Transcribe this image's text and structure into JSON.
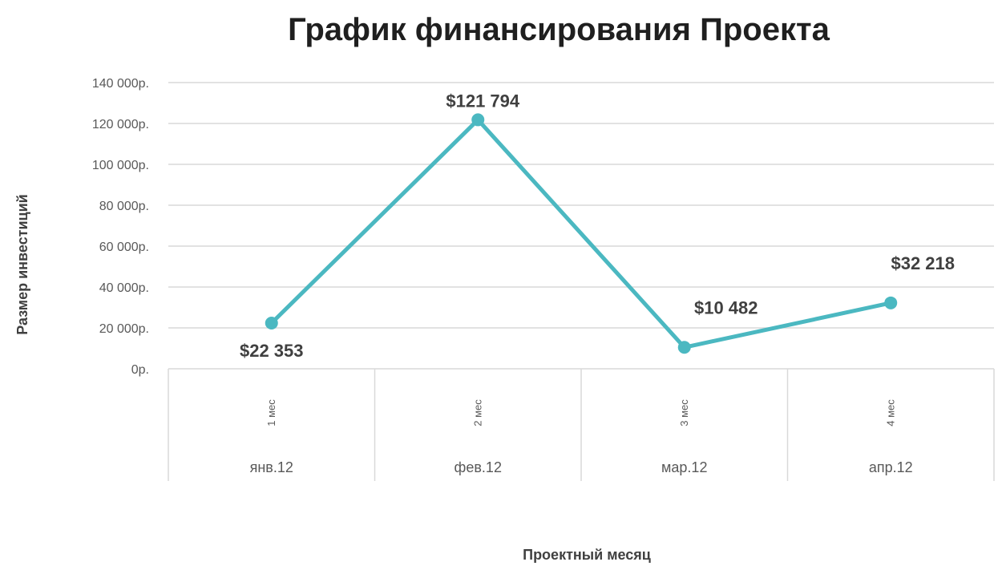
{
  "chart_data": {
    "type": "line",
    "title": "График финансирования Проекта",
    "xlabel": "Проектный месяц",
    "ylabel": "Размер инвестиций",
    "categories": [
      "янв.12",
      "фев.12",
      "мар.12",
      "апр.12"
    ],
    "sub_categories": [
      "1 мес",
      "2 мес",
      "3 мес",
      "4 мес"
    ],
    "series": [
      {
        "values": [
          22353,
          121794,
          10482,
          32218
        ],
        "data_labels": [
          "$22 353",
          "$121 794",
          "$10 482",
          "$32 218"
        ]
      }
    ],
    "ylim": [
      0,
      140000
    ],
    "yticks": [
      0,
      20000,
      40000,
      60000,
      80000,
      100000,
      120000,
      140000
    ],
    "ytick_labels": [
      "0р.",
      "20 000р.",
      "40 000р.",
      "60 000р.",
      "80 000р.",
      "100 000р.",
      "120 000р.",
      "140 000р."
    ],
    "grid": true,
    "legend": "none",
    "colors": {
      "line": "#4bb8c1",
      "grid": "#d9d9d9"
    }
  }
}
